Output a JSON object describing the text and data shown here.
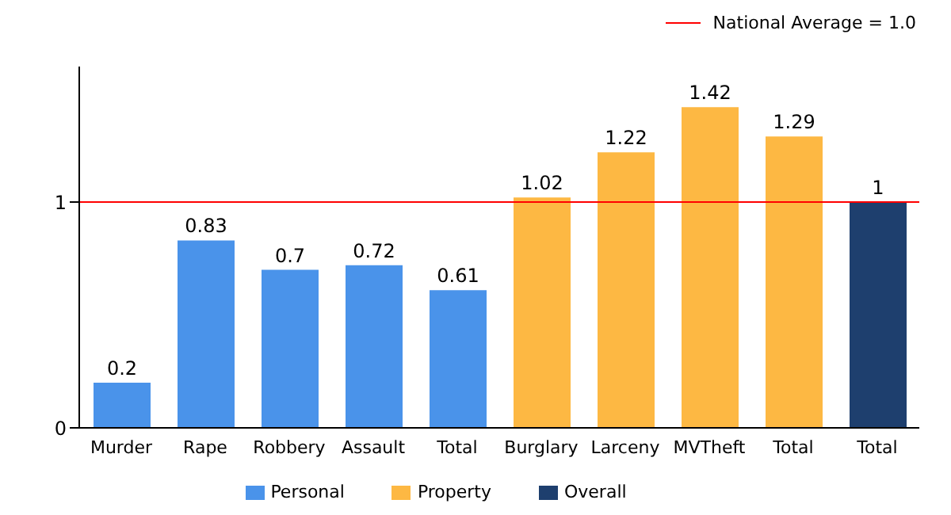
{
  "chart_data": {
    "type": "bar",
    "categories": [
      "Murder",
      "Rape",
      "Robbery",
      "Assault",
      "Total",
      "Burglary",
      "Larceny",
      "MVTheft",
      "Total",
      "Total"
    ],
    "series": [
      {
        "name": "Personal",
        "color": "#4a93ea",
        "values": [
          0.2,
          0.83,
          0.7,
          0.72,
          0.61,
          null,
          null,
          null,
          null,
          null
        ]
      },
      {
        "name": "Property",
        "color": "#fdb843",
        "values": [
          null,
          null,
          null,
          null,
          null,
          1.02,
          1.22,
          1.42,
          1.29,
          null
        ]
      },
      {
        "name": "Overall",
        "color": "#1e3f6e",
        "values": [
          null,
          null,
          null,
          null,
          null,
          null,
          null,
          null,
          null,
          1
        ]
      }
    ],
    "stacked": true,
    "ylim": [
      0,
      1.6
    ],
    "yticks": [
      0,
      1
    ],
    "data_labels": true,
    "legend": "bottom",
    "ref_lines": [
      {
        "axis": "y",
        "value": 1,
        "label": "National Average = 1.0",
        "color": "#ff0000"
      }
    ]
  }
}
